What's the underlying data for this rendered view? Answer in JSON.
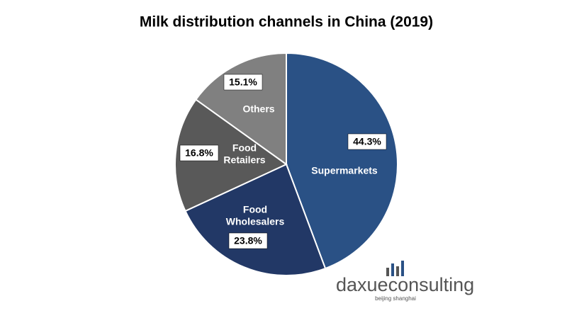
{
  "chart_data": {
    "type": "pie",
    "title": "Milk distribution channels in China (2019)",
    "categories": [
      "Supermarkets",
      "Food Wholesalers",
      "Food Retailers",
      "Others"
    ],
    "values": [
      44.3,
      23.8,
      16.8,
      15.1
    ],
    "value_labels": [
      "44.3%",
      "23.8%",
      "16.8%",
      "15.1%"
    ],
    "colors": [
      "#2a5185",
      "#223866",
      "#595959",
      "#808080"
    ],
    "watermark": {
      "brand": "daxueconsulting",
      "tagline": "beijing shanghai"
    }
  }
}
